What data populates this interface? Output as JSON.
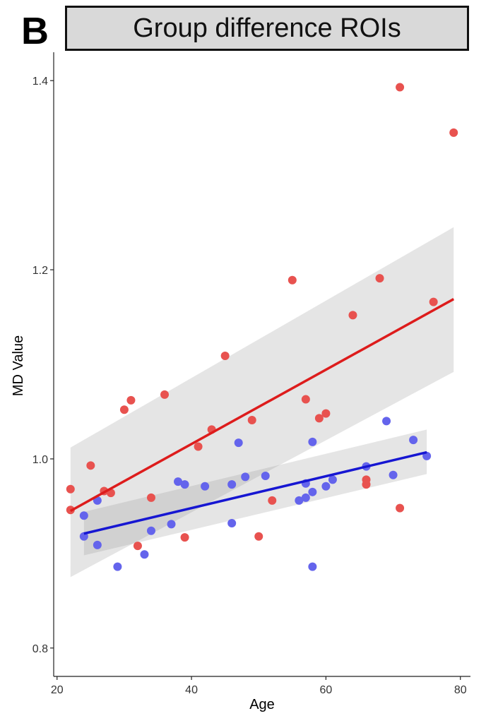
{
  "panel_letter": "B",
  "chart_data": {
    "type": "scatter",
    "title": "Group difference ROIs",
    "xlabel": "Age",
    "ylabel": "MD Value",
    "xlim": [
      19.5,
      81.5
    ],
    "ylim": [
      0.77,
      1.43
    ],
    "x_ticks": [
      20,
      40,
      60,
      80
    ],
    "x_tick_labels": [
      "20",
      "40",
      "60",
      "80"
    ],
    "y_ticks": [
      0.8,
      1.0,
      1.2,
      1.4
    ],
    "y_tick_labels": [
      "0.8",
      "1.0",
      "1.2",
      "1.4"
    ],
    "grid": false,
    "series": [
      {
        "color": "#e8524f",
        "line_color": "#dd1c1c",
        "points": [
          [
            22,
            0.968
          ],
          [
            22,
            0.946
          ],
          [
            25,
            0.993
          ],
          [
            27,
            0.966
          ],
          [
            28,
            0.964
          ],
          [
            30,
            1.052
          ],
          [
            31,
            1.062
          ],
          [
            32,
            0.908
          ],
          [
            34,
            0.959
          ],
          [
            36,
            1.068
          ],
          [
            39,
            0.917
          ],
          [
            41,
            1.013
          ],
          [
            43,
            1.031
          ],
          [
            45,
            1.109
          ],
          [
            49,
            1.041
          ],
          [
            50,
            0.918
          ],
          [
            52,
            0.956
          ],
          [
            55,
            1.189
          ],
          [
            57,
            1.063
          ],
          [
            59,
            1.043
          ],
          [
            60,
            1.048
          ],
          [
            64,
            1.152
          ],
          [
            66,
            0.978
          ],
          [
            66,
            0.973
          ],
          [
            68,
            1.191
          ],
          [
            71,
            1.393
          ],
          [
            71,
            0.948
          ],
          [
            76,
            1.166
          ],
          [
            79,
            1.345
          ]
        ],
        "fit": {
          "x": [
            22,
            79
          ],
          "y": [
            0.945,
            1.169
          ]
        },
        "ci_band": {
          "x": [
            22,
            79
          ],
          "lower": [
            0.875,
            1.092
          ],
          "upper": [
            1.012,
            1.245
          ]
        }
      },
      {
        "color": "#6464ec",
        "line_color": "#1616d2",
        "points": [
          [
            24,
            0.94
          ],
          [
            24,
            0.918
          ],
          [
            26,
            0.956
          ],
          [
            26,
            0.909
          ],
          [
            29,
            0.886
          ],
          [
            33,
            0.899
          ],
          [
            34,
            0.924
          ],
          [
            37,
            0.931
          ],
          [
            38,
            0.976
          ],
          [
            39,
            0.973
          ],
          [
            42,
            0.971
          ],
          [
            46,
            0.932
          ],
          [
            46,
            0.973
          ],
          [
            47,
            1.017
          ],
          [
            48,
            0.981
          ],
          [
            51,
            0.982
          ],
          [
            56,
            0.956
          ],
          [
            57,
            0.959
          ],
          [
            57,
            0.974
          ],
          [
            58,
            0.965
          ],
          [
            58,
            0.886
          ],
          [
            58,
            1.018
          ],
          [
            60,
            0.971
          ],
          [
            61,
            0.978
          ],
          [
            66,
            0.992
          ],
          [
            69,
            1.04
          ],
          [
            70,
            0.983
          ],
          [
            73,
            1.02
          ],
          [
            75,
            1.003
          ]
        ],
        "fit": {
          "x": [
            24,
            75
          ],
          "y": [
            0.921,
            1.007
          ]
        },
        "ci_band": {
          "x": [
            24,
            75
          ],
          "lower": [
            0.898,
            0.984
          ],
          "upper": [
            0.944,
            1.031
          ]
        }
      }
    ]
  }
}
